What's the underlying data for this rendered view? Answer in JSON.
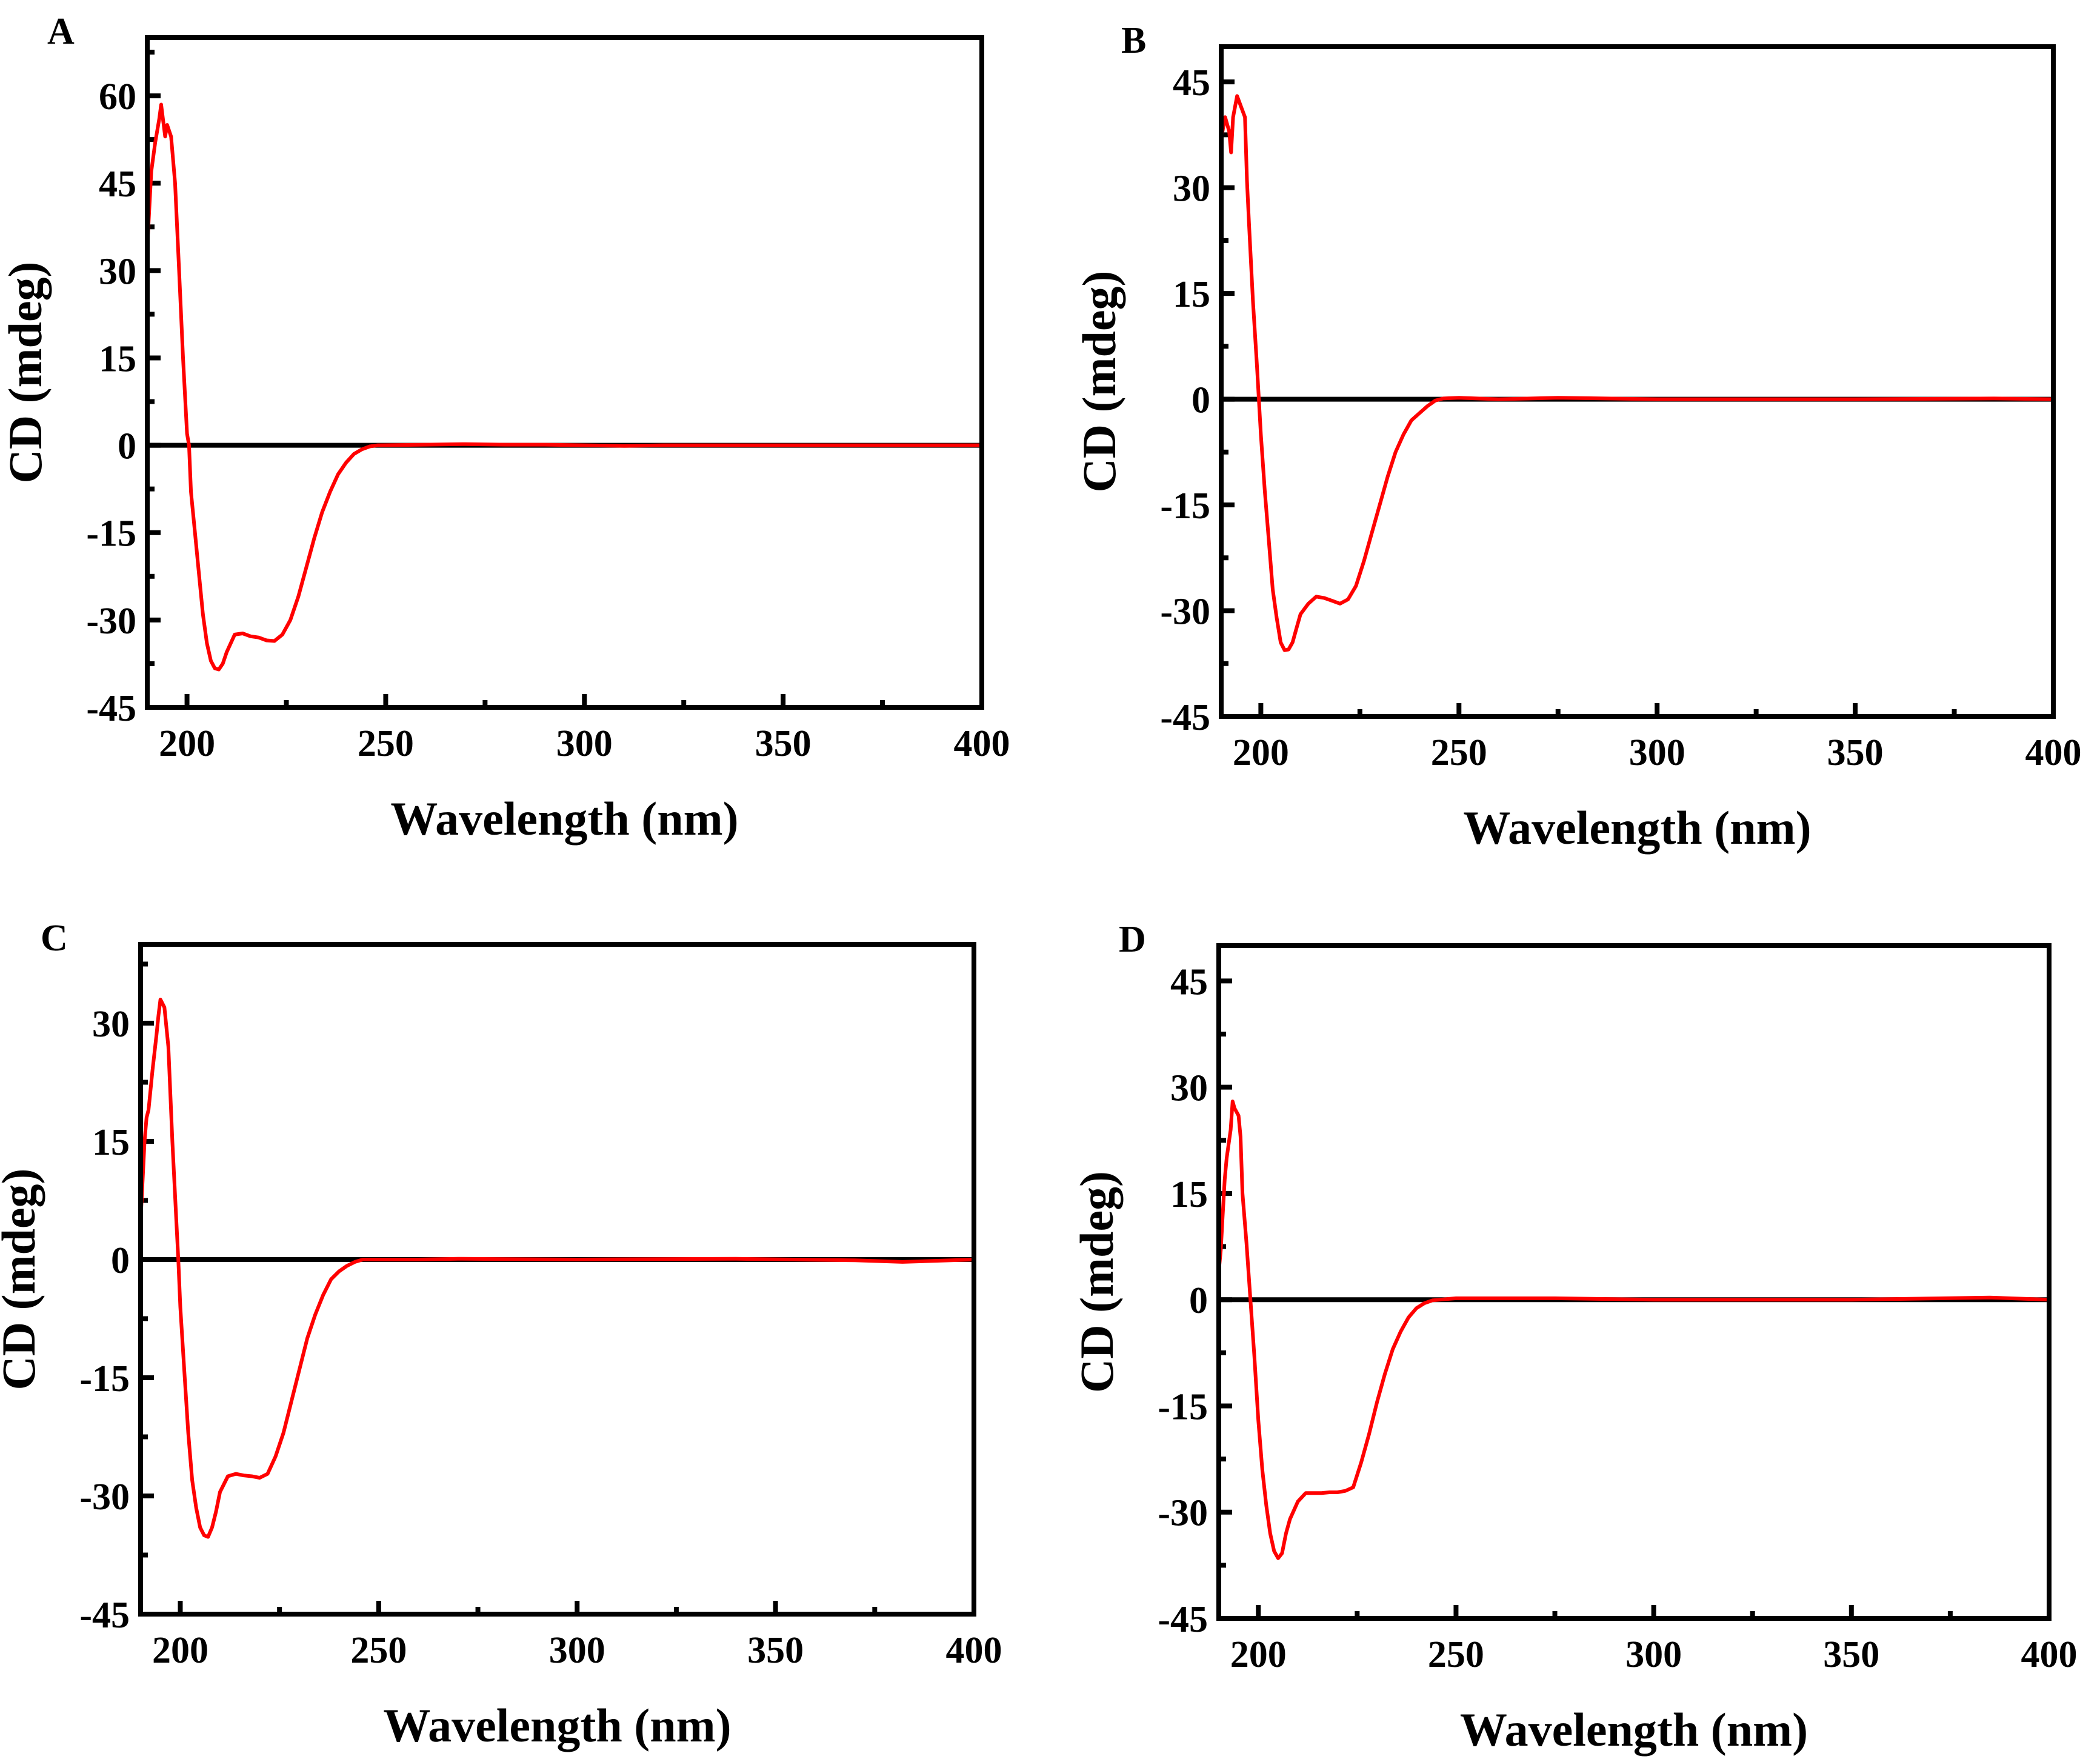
{
  "chart_data": [
    {
      "type": "line",
      "panel_label": "A",
      "xlabel": "Wavelength (nm)",
      "ylabel": "CD (mdeg)",
      "xlim": [
        190,
        400
      ],
      "ylim": [
        -45,
        70
      ],
      "xticks": [
        200,
        250,
        300,
        350,
        400
      ],
      "yticks": [
        -45,
        -30,
        -15,
        0,
        15,
        30,
        45,
        60
      ],
      "zero_line": true,
      "grid": false,
      "line_color": "#ff0000",
      "series": [
        {
          "x": [
            190,
            191,
            192,
            193,
            193.5,
            194.5,
            195,
            196,
            197,
            198,
            199,
            200,
            200.5,
            201,
            202,
            203,
            204,
            205,
            206,
            207,
            208,
            209,
            210,
            212,
            214,
            216,
            218,
            220,
            222,
            224,
            226,
            228,
            230,
            232,
            234,
            236,
            238,
            240,
            242,
            244,
            246,
            248,
            260,
            270,
            280,
            290,
            300,
            310,
            320,
            340,
            360,
            380,
            400
          ],
          "y": [
            34,
            47,
            52,
            56,
            58.5,
            53,
            55,
            53,
            45,
            30,
            15,
            2,
            0,
            -8,
            -15,
            -22,
            -29,
            -34,
            -37,
            -38.3,
            -38.5,
            -37.5,
            -35.5,
            -32.5,
            -32.3,
            -32.8,
            -33,
            -33.5,
            -33.6,
            -32.5,
            -30,
            -26,
            -21,
            -16,
            -11.5,
            -8,
            -5,
            -3,
            -1.5,
            -0.7,
            -0.2,
            0,
            0.1,
            0.2,
            0.1,
            0.1,
            0,
            -0.1,
            0,
            0,
            0,
            0,
            0
          ]
        }
      ]
    },
    {
      "type": "line",
      "panel_label": "B",
      "xlabel": "Wavelength (nm)",
      "ylabel": "CD (mdeg)",
      "xlim": [
        190,
        400
      ],
      "ylim": [
        -45,
        50
      ],
      "xticks": [
        200,
        250,
        300,
        350,
        400
      ],
      "yticks": [
        -45,
        -30,
        -15,
        0,
        15,
        30,
        45
      ],
      "zero_line": true,
      "grid": false,
      "line_color": "#ff0000",
      "series": [
        {
          "x": [
            190,
            191,
            192,
            192.5,
            193,
            194,
            195,
            196,
            196.5,
            197,
            198,
            199,
            199.5,
            200,
            201,
            202,
            203,
            204,
            205,
            206,
            207,
            208,
            209,
            210,
            212,
            214,
            216,
            218,
            220,
            222,
            224,
            226,
            228,
            230,
            232,
            234,
            236,
            238,
            240,
            242,
            244,
            246,
            250,
            260,
            275,
            300,
            320,
            350,
            385,
            400
          ],
          "y": [
            37,
            40,
            38,
            35,
            40,
            43,
            41.5,
            40,
            31,
            25,
            14,
            5,
            0,
            -5,
            -13,
            -20,
            -27,
            -31,
            -34.5,
            -35.6,
            -35.5,
            -34.5,
            -32.5,
            -30.5,
            -29,
            -28,
            -28.2,
            -28.6,
            -29,
            -28.4,
            -26.5,
            -23,
            -19,
            -15,
            -11,
            -7.5,
            -5,
            -3,
            -2,
            -1,
            -0.2,
            0.1,
            0.2,
            0,
            0.2,
            0,
            0,
            0,
            0.1,
            0
          ]
        }
      ]
    },
    {
      "type": "line",
      "panel_label": "C",
      "xlabel": "Wavelength (nm)",
      "ylabel": "CD (mdeg)",
      "xlim": [
        190,
        400
      ],
      "ylim": [
        -45,
        40
      ],
      "xticks": [
        200,
        250,
        300,
        350,
        400
      ],
      "yticks": [
        -45,
        -30,
        -15,
        0,
        15,
        30
      ],
      "zero_line": true,
      "grid": false,
      "line_color": "#ff0000",
      "series": [
        {
          "x": [
            190,
            190.5,
            191,
            191.5,
            192,
            193,
            194,
            194.5,
            195,
            196,
            197,
            198,
            199,
            199.5,
            200,
            201,
            202,
            203,
            204,
            205,
            206,
            207,
            208,
            209,
            210,
            212,
            214,
            216,
            218,
            220,
            222,
            224,
            226,
            228,
            230,
            232,
            234,
            236,
            238,
            240,
            242,
            244,
            246,
            260,
            270,
            300,
            340,
            370,
            382,
            400
          ],
          "y": [
            5,
            10,
            15,
            18,
            19,
            24,
            28.5,
            31,
            33,
            32,
            27,
            15,
            5,
            0,
            -6,
            -14,
            -22,
            -28,
            -31.5,
            -34,
            -35,
            -35.2,
            -34,
            -32,
            -29.5,
            -27.5,
            -27.2,
            -27.4,
            -27.5,
            -27.7,
            -27.2,
            -25,
            -22,
            -18,
            -14,
            -10,
            -7,
            -4.5,
            -2.5,
            -1.5,
            -0.8,
            -0.3,
            0,
            0,
            0.1,
            0,
            0.1,
            -0.1,
            -0.3,
            0
          ]
        }
      ]
    },
    {
      "type": "line",
      "panel_label": "D",
      "xlabel": "Wavelength (nm)",
      "ylabel": "CD (mdeg)",
      "xlim": [
        190,
        400
      ],
      "ylim": [
        -45,
        50
      ],
      "xticks": [
        200,
        250,
        300,
        350,
        400
      ],
      "yticks": [
        -45,
        -30,
        -15,
        0,
        15,
        30,
        45
      ],
      "zero_line": true,
      "grid": false,
      "line_color": "#ff0000",
      "series": [
        {
          "x": [
            190,
            190.5,
            191,
            191.5,
            192,
            193,
            193.5,
            194,
            195,
            195.5,
            196,
            197,
            198,
            199,
            200,
            201,
            202,
            203,
            204,
            205,
            206,
            207,
            208,
            210,
            212,
            214,
            216,
            218,
            220,
            222,
            224,
            226,
            228,
            230,
            232,
            234,
            236,
            238,
            240,
            242,
            244,
            246,
            250,
            275,
            300,
            350,
            385,
            400
          ],
          "y": [
            4,
            7,
            12,
            17,
            20,
            24,
            28,
            27,
            26,
            23,
            15,
            8,
            0,
            -8,
            -17,
            -24,
            -29,
            -33,
            -35.5,
            -36.5,
            -35.8,
            -33,
            -31,
            -28.5,
            -27.3,
            -27.3,
            -27.3,
            -27.2,
            -27.2,
            -27,
            -26.5,
            -23,
            -19,
            -14.5,
            -10.5,
            -7,
            -4.5,
            -2.5,
            -1.2,
            -0.5,
            -0.1,
            0,
            0.2,
            0.2,
            0,
            0,
            0.3,
            0
          ]
        }
      ]
    }
  ]
}
